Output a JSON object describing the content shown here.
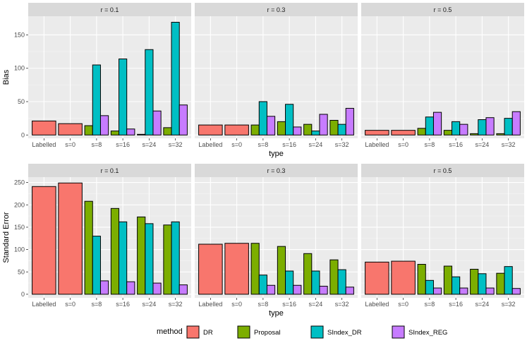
{
  "chart_data": {
    "type": "bar",
    "facet_labels": [
      "r = 0.1",
      "r = 0.3",
      "r = 0.5"
    ],
    "categories": [
      "Labelled",
      "s=0",
      "s=8",
      "s=16",
      "s=24",
      "s=32"
    ],
    "xlabel": "type",
    "legend": {
      "title": "method",
      "placement": "bottom",
      "entries": [
        {
          "name": "DR",
          "color": "#F8766D"
        },
        {
          "name": "Proposal",
          "color": "#7CAE00"
        },
        {
          "name": "SIndex_DR",
          "color": "#00BFC4"
        },
        {
          "name": "SIndex_REG",
          "color": "#C77CFF"
        }
      ]
    },
    "rows": [
      {
        "ylabel": "Bias",
        "ylim": [
          -5,
          178
        ],
        "yticks": [
          0,
          50,
          100,
          150
        ],
        "panels": [
          {
            "facet": "r = 0.1",
            "series": [
              {
                "name": "DR",
                "values": [
                  21,
                  17,
                  null,
                  null,
                  null,
                  null
                ]
              },
              {
                "name": "Proposal",
                "values": [
                  null,
                  null,
                  14,
                  6,
                  1,
                  11
                ]
              },
              {
                "name": "SIndex_DR",
                "values": [
                  null,
                  null,
                  105,
                  114,
                  128,
                  169
                ]
              },
              {
                "name": "SIndex_REG",
                "values": [
                  null,
                  null,
                  29,
                  9,
                  36,
                  45
                ]
              }
            ]
          },
          {
            "facet": "r = 0.3",
            "series": [
              {
                "name": "DR",
                "values": [
                  15,
                  15,
                  null,
                  null,
                  null,
                  null
                ]
              },
              {
                "name": "Proposal",
                "values": [
                  null,
                  null,
                  15,
                  20,
                  16,
                  22
                ]
              },
              {
                "name": "SIndex_DR",
                "values": [
                  null,
                  null,
                  50,
                  46,
                  6,
                  16
                ]
              },
              {
                "name": "SIndex_REG",
                "values": [
                  null,
                  null,
                  28,
                  12,
                  31,
                  40
                ]
              }
            ]
          },
          {
            "facet": "r = 0.5",
            "series": [
              {
                "name": "DR",
                "values": [
                  7,
                  7,
                  null,
                  null,
                  null,
                  null
                ]
              },
              {
                "name": "Proposal",
                "values": [
                  null,
                  null,
                  10,
                  7,
                  2,
                  2
                ]
              },
              {
                "name": "SIndex_DR",
                "values": [
                  null,
                  null,
                  27,
                  20,
                  23,
                  25
                ]
              },
              {
                "name": "SIndex_REG",
                "values": [
                  null,
                  null,
                  34,
                  16,
                  26,
                  35
                ]
              }
            ]
          }
        ]
      },
      {
        "ylabel": "Standard Error",
        "ylim": [
          -8,
          262
        ],
        "yticks": [
          0,
          50,
          100,
          150,
          200,
          250
        ],
        "panels": [
          {
            "facet": "r = 0.1",
            "series": [
              {
                "name": "DR",
                "values": [
                  241,
                  249,
                  null,
                  null,
                  null,
                  null
                ]
              },
              {
                "name": "Proposal",
                "values": [
                  null,
                  null,
                  208,
                  192,
                  173,
                  155
                ]
              },
              {
                "name": "SIndex_DR",
                "values": [
                  null,
                  null,
                  130,
                  162,
                  158,
                  162
                ]
              },
              {
                "name": "SIndex_REG",
                "values": [
                  null,
                  null,
                  30,
                  28,
                  25,
                  21
                ]
              }
            ]
          },
          {
            "facet": "r = 0.3",
            "series": [
              {
                "name": "DR",
                "values": [
                  112,
                  114,
                  null,
                  null,
                  null,
                  null
                ]
              },
              {
                "name": "Proposal",
                "values": [
                  null,
                  null,
                  114,
                  107,
                  91,
                  77
                ]
              },
              {
                "name": "SIndex_DR",
                "values": [
                  null,
                  null,
                  43,
                  52,
                  52,
                  55
                ]
              },
              {
                "name": "SIndex_REG",
                "values": [
                  null,
                  null,
                  20,
                  20,
                  18,
                  16
                ]
              }
            ]
          },
          {
            "facet": "r = 0.5",
            "series": [
              {
                "name": "DR",
                "values": [
                  72,
                  74,
                  null,
                  null,
                  null,
                  null
                ]
              },
              {
                "name": "Proposal",
                "values": [
                  null,
                  null,
                  67,
                  63,
                  56,
                  47
                ]
              },
              {
                "name": "SIndex_DR",
                "values": [
                  null,
                  null,
                  31,
                  39,
                  46,
                  62
                ]
              },
              {
                "name": "SIndex_REG",
                "values": [
                  null,
                  null,
                  14,
                  14,
                  14,
                  13
                ]
              }
            ]
          }
        ]
      }
    ]
  }
}
